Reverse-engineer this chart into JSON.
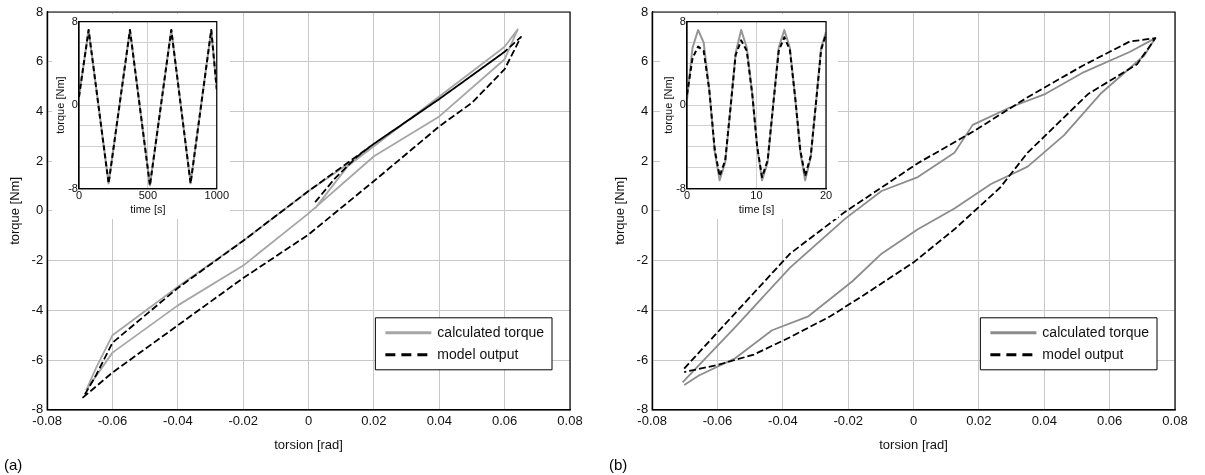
{
  "chart_data": [
    {
      "type": "line",
      "xlabel": "torsion [rad]",
      "ylabel": "torque [Nm]",
      "annotations": [
        "(a)"
      ],
      "xlim": [
        -0.08,
        0.08
      ],
      "xticks": [
        -0.08,
        -0.06,
        -0.04,
        -0.02,
        0,
        0.02,
        0.04,
        0.06,
        0.08
      ],
      "ylim": [
        -8,
        8
      ],
      "yticks": [
        -8,
        -6,
        -4,
        -2,
        0,
        2,
        4,
        6,
        8
      ],
      "grid": true,
      "legend": "bottom right",
      "marker": "none",
      "series": [
        {
          "name": "calculated torque",
          "color": "#a6a6a6",
          "line_style": "solid",
          "x": [
            0.002,
            0.012,
            0.02,
            0.04,
            0.06,
            0.064,
            0.06,
            0.04,
            0.02,
            0,
            -0.02,
            -0.04,
            -0.06,
            -0.068,
            -0.065,
            -0.06,
            -0.04,
            -0.02,
            0,
            0.02
          ],
          "values": [
            0.1,
            1.8,
            2.6,
            4.6,
            6.6,
            7.3,
            6.1,
            3.8,
            2.2,
            -0.1,
            -2.2,
            -3.8,
            -5.7,
            -7.2,
            -6.3,
            -5.0,
            -3.05,
            -1.2,
            0.8,
            2.6
          ]
        },
        {
          "name": "model output",
          "color": "#000000",
          "line_style": "dashed",
          "x": [
            0.002,
            0.008,
            0.015,
            0.02,
            0.04,
            0.06,
            0.065,
            0.06,
            0.05,
            0.04,
            0.02,
            0,
            -0.02,
            -0.04,
            -0.06,
            -0.069,
            -0.065,
            -0.06,
            -0.04,
            -0.02,
            0,
            0.02,
            0.04,
            0.06
          ],
          "values": [
            0.35,
            1.3,
            2.2,
            2.7,
            4.5,
            6.4,
            7.0,
            5.7,
            4.35,
            3.4,
            1.2,
            -0.95,
            -2.7,
            -4.6,
            -6.5,
            -7.5,
            -6.6,
            -5.3,
            -3.1,
            -1.2,
            0.8,
            2.7,
            4.5,
            6.4
          ]
        }
      ]
    },
    {
      "type": "line",
      "xlabel": "time [s]",
      "ylabel": "torque [Nm]",
      "xlim": [
        0,
        1000
      ],
      "xticks": [
        0,
        500,
        1000
      ],
      "ylim": [
        -8,
        8
      ],
      "yticks": [
        -8,
        {
          "value": -6,
          "label": null
        },
        {
          "value": -4,
          "label": null
        },
        {
          "value": -2,
          "label": null
        },
        0,
        {
          "value": 2,
          "label": null
        },
        {
          "value": 4,
          "label": null
        },
        {
          "value": 6,
          "label": null
        },
        8
      ],
      "grid": true,
      "legend": false,
      "marker": "none",
      "series": [
        {
          "color": "#9a9a9a",
          "line_style": "solid",
          "x": [
            0,
            70,
            215,
            370,
            515,
            670,
            810,
            960,
            1000
          ],
          "values": [
            0.8,
            7.2,
            -7.5,
            7.2,
            -7.7,
            7.2,
            -7.5,
            7.2,
            1.5
          ]
        },
        {
          "color": "#000000",
          "line_style": "dashed",
          "x": [
            0,
            70,
            215,
            370,
            515,
            670,
            810,
            960,
            1000
          ],
          "values": [
            0.8,
            7.2,
            -7.5,
            7.2,
            -7.7,
            7.2,
            -7.5,
            7.2,
            1.5
          ]
        }
      ]
    },
    {
      "type": "line",
      "xlabel": "torsion [rad]",
      "ylabel": "torque [Nm]",
      "annotations": [
        "(b)"
      ],
      "xlim": [
        -0.08,
        0.08
      ],
      "xticks": [
        -0.08,
        -0.06,
        -0.04,
        -0.02,
        0,
        0.02,
        0.04,
        0.06,
        0.08
      ],
      "ylim": [
        -8,
        8
      ],
      "yticks": [
        -8,
        -6,
        -4,
        -2,
        0,
        2,
        4,
        6,
        8
      ],
      "grid": true,
      "legend": "bottom right",
      "marker": "none",
      "series": [
        {
          "name": "calculated torque",
          "color": "#8c8c8c",
          "line_style": "solid",
          "x": [
            -0.0707,
            -0.0545,
            -0.0378,
            -0.021,
            -0.0098,
            0.0013,
            0.0125,
            0.0181,
            0.0293,
            0.0404,
            0.0516,
            0.0661,
            0.074,
            0.0706,
            0.0572,
            0.046,
            0.0349,
            0.0237,
            0.0125,
            0.0013,
            -0.0098,
            -0.0188,
            -0.0322,
            -0.0433,
            -0.0545,
            -0.0657,
            -0.0702
          ],
          "values": [
            -6.9,
            -4.66,
            -2.28,
            -0.32,
            0.8,
            1.36,
            2.34,
            3.46,
            4.15,
            4.71,
            5.55,
            6.39,
            6.95,
            6.25,
            4.71,
            3.04,
            1.78,
            1.08,
            0.1,
            -0.74,
            -1.72,
            -2.84,
            -4.24,
            -4.8,
            -5.92,
            -6.62,
            -7.0
          ]
        },
        {
          "name": "model output",
          "color": "#000000",
          "line_style": "dashed",
          "x": [
            -0.0702,
            -0.0545,
            -0.0378,
            -0.021,
            -0.0098,
            0.0013,
            0.0181,
            0.0349,
            0.0516,
            0.0661,
            0.074,
            0.0684,
            0.0534,
            0.0349,
            0.0265,
            0.0125,
            0,
            -0.0154,
            -0.0255,
            -0.0378,
            -0.0489,
            -0.0601,
            -0.0702
          ],
          "values": [
            -6.34,
            -4.1,
            -1.72,
            -0.04,
            0.94,
            1.92,
            3.18,
            4.57,
            5.83,
            6.81,
            6.95,
            5.9,
            4.7,
            2.34,
            0.94,
            -0.74,
            -2.07,
            -3.4,
            -4.24,
            -5.08,
            -5.78,
            -6.2,
            -6.48
          ]
        }
      ]
    },
    {
      "type": "line",
      "xlabel": "time [s]",
      "ylabel": "torque [Nm]",
      "xlim": [
        0,
        20
      ],
      "xticks": [
        0,
        10,
        20
      ],
      "ylim": [
        -8,
        8
      ],
      "yticks": [
        -8,
        {
          "value": -6,
          "label": null
        },
        {
          "value": -4,
          "label": null
        },
        {
          "value": -2,
          "label": null
        },
        0,
        {
          "value": 2,
          "label": null
        },
        {
          "value": 4,
          "label": null
        },
        {
          "value": 6,
          "label": null
        },
        8
      ],
      "grid": true,
      "legend": false,
      "marker": "none",
      "series": [
        {
          "color": "#969696",
          "line_style": "solid",
          "x": [
            0,
            0.8,
            1.6,
            2.4,
            3.2,
            4.0,
            4.7,
            5.5,
            6.3,
            7.0,
            7.8,
            8.6,
            9.4,
            10.1,
            10.8,
            11.6,
            12.4,
            13.2,
            14.0,
            14.8,
            15.6,
            16.3,
            17.0,
            17.8,
            18.6,
            19.3,
            20
          ],
          "values": [
            0.5,
            5.5,
            7.2,
            6.0,
            1.5,
            -4.5,
            -7.2,
            -5.5,
            0,
            5,
            7.2,
            5.5,
            1,
            -4,
            -7.2,
            -5.5,
            0,
            5.5,
            7.2,
            5.5,
            0.5,
            -4.5,
            -7.2,
            -5,
            0.5,
            5.5,
            7.0
          ]
        },
        {
          "color": "#000000",
          "line_style": "dashed",
          "x": [
            0,
            0.8,
            1.6,
            2.4,
            3.2,
            4.0,
            4.7,
            5.5,
            6.3,
            7.0,
            7.8,
            8.6,
            9.4,
            10.1,
            10.8,
            11.6,
            12.4,
            13.2,
            14.0,
            14.8,
            15.6,
            16.3,
            17.0,
            17.8,
            18.6,
            19.3,
            20
          ],
          "values": [
            1,
            4.5,
            5.6,
            5.2,
            1.5,
            -4.3,
            -6.8,
            -5.3,
            0,
            4.8,
            6.2,
            5.2,
            1,
            -4,
            -6.9,
            -5.3,
            0,
            5.2,
            6.5,
            5.3,
            0.5,
            -4.3,
            -6.8,
            -4.9,
            0.5,
            5.3,
            6.8
          ]
        }
      ]
    }
  ]
}
